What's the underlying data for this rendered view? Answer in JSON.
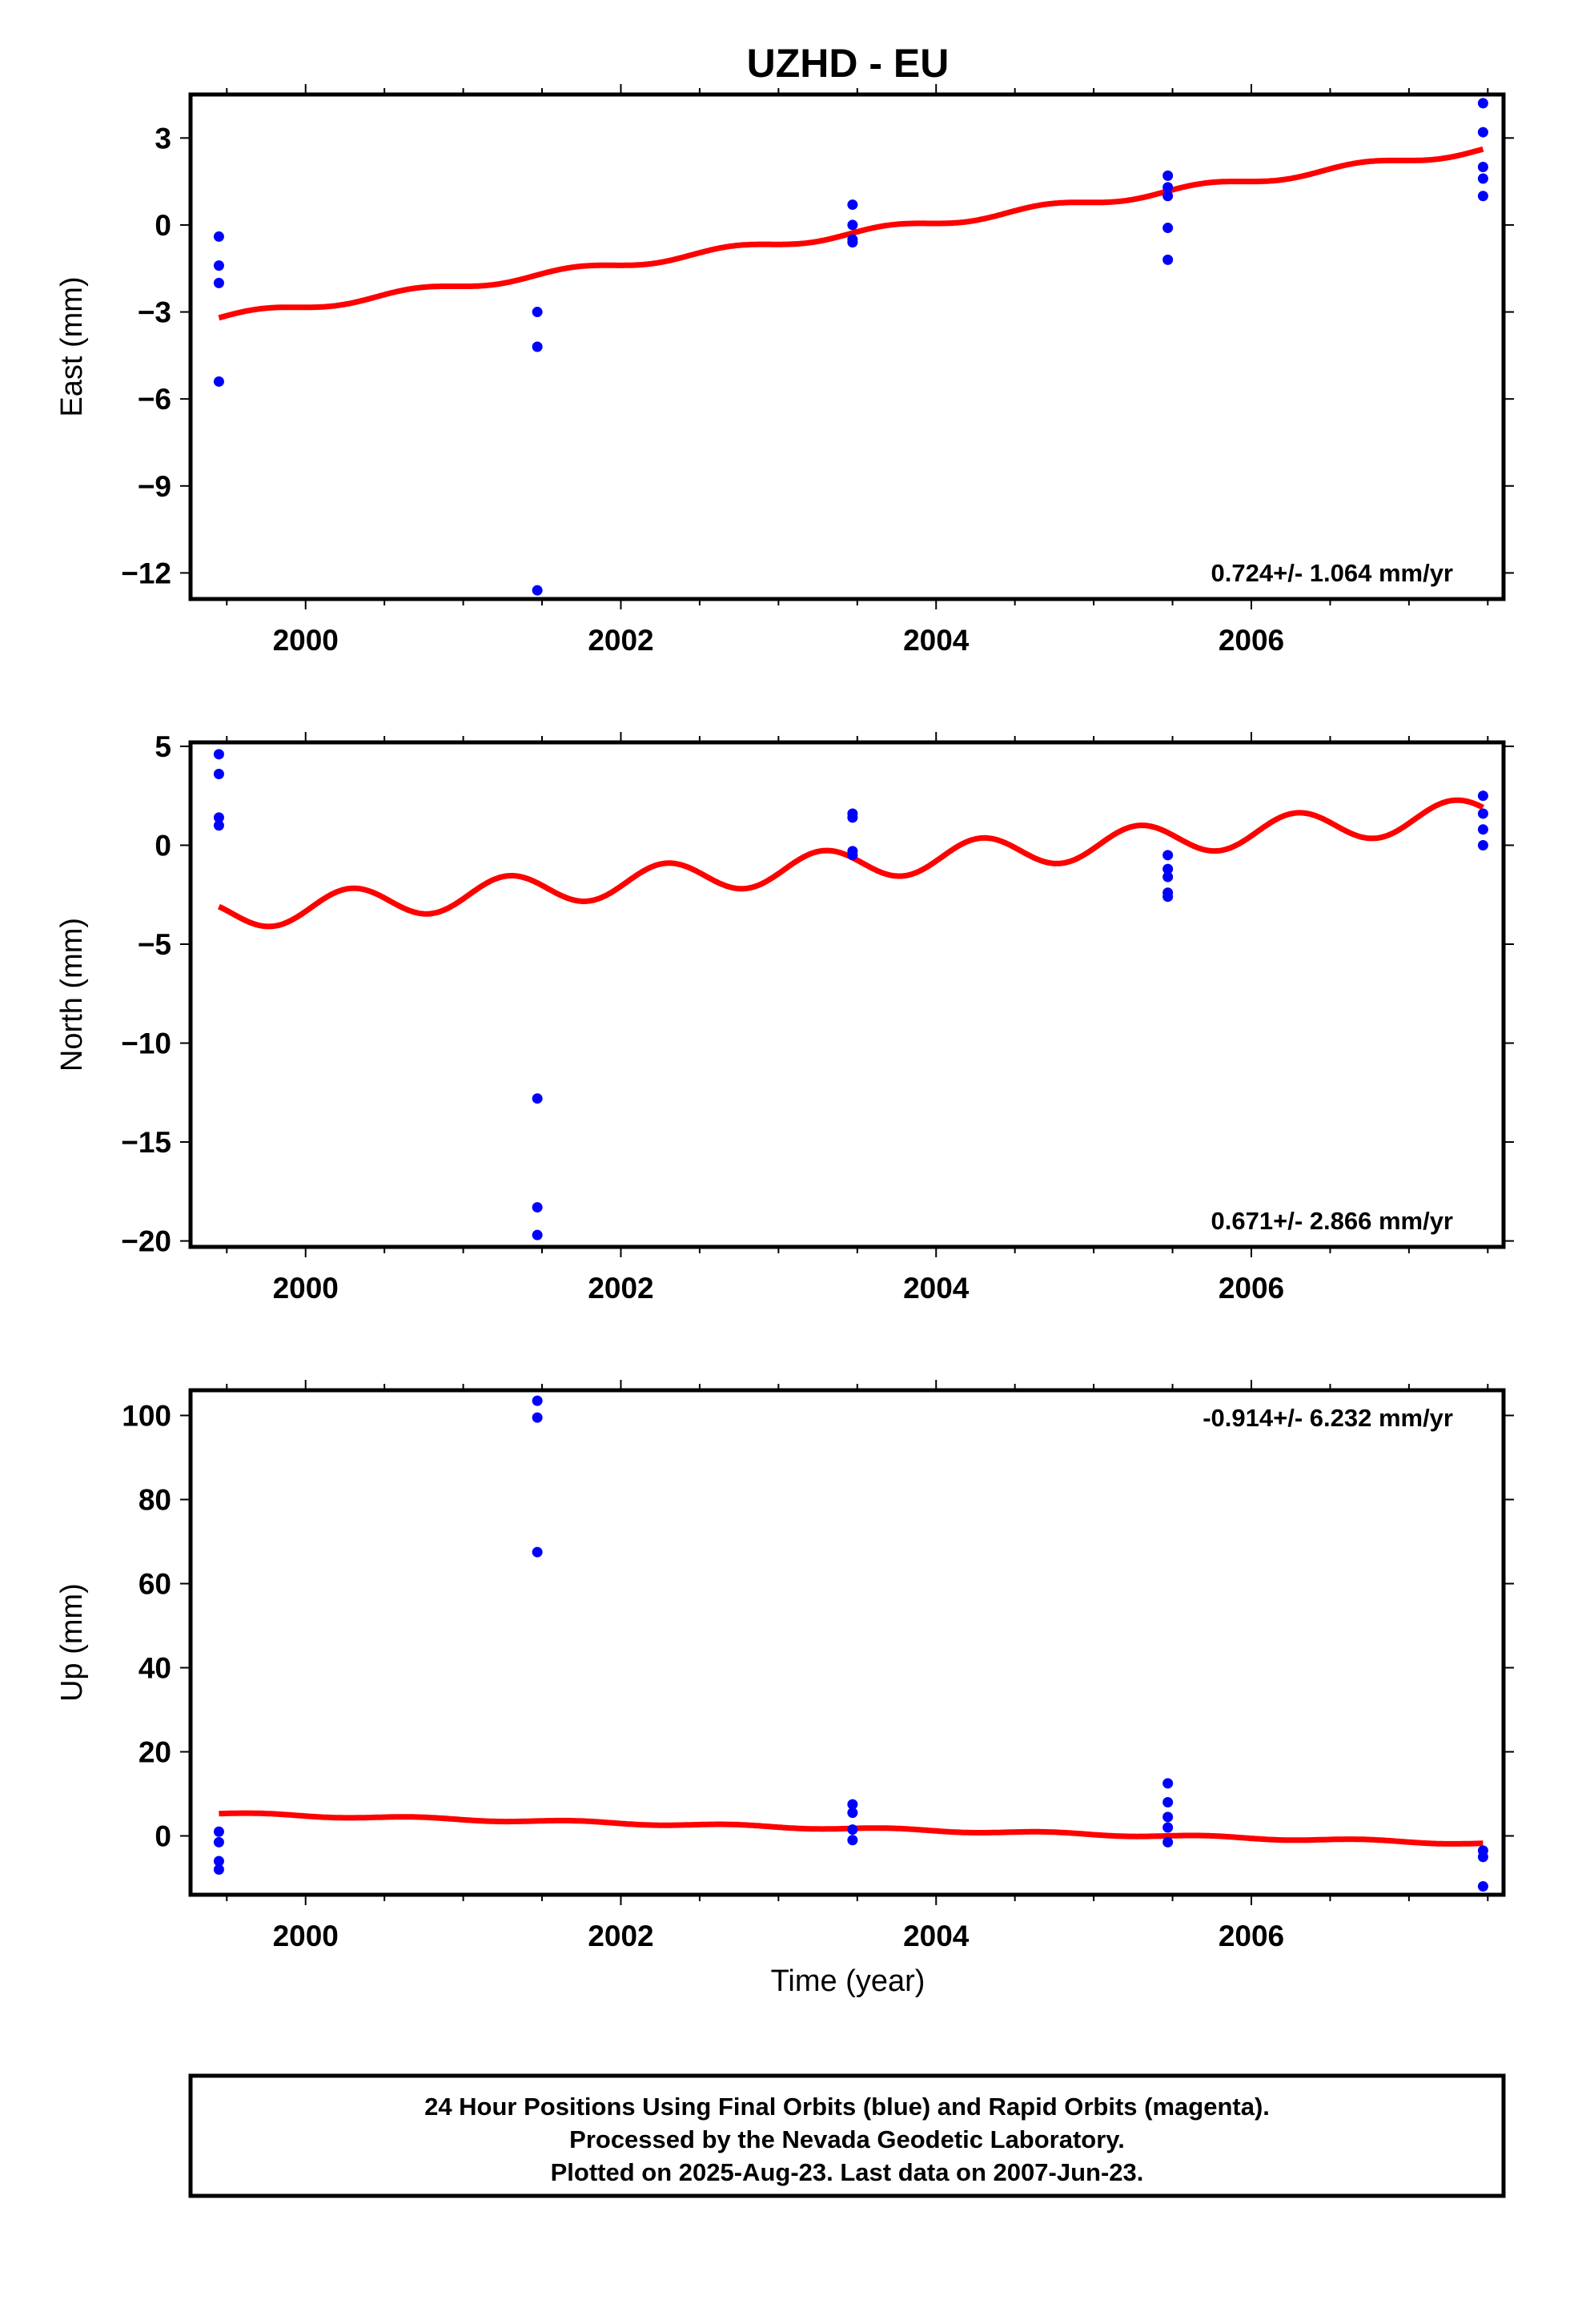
{
  "title": "UZHD - EU",
  "xlabel": "Time (year)",
  "footer": {
    "line1": "24 Hour Positions Using Final Orbits (blue) and Rapid Orbits (magenta).",
    "line2": "Processed by the Nevada Geodetic Laboratory.",
    "line3": "Plotted on 2025-Aug-23. Last data on 2007-Jun-23."
  },
  "colors": {
    "points": "#0000ff",
    "fit": "#ff0000",
    "frame": "#000000"
  },
  "chart_data": [
    {
      "type": "scatter",
      "ylabel": "East (mm)",
      "rate_label": "0.724+/- 1.064 mm/yr",
      "rate_position": "bottom-right",
      "xlim": [
        1999.27,
        2007.6
      ],
      "ylim": [
        -12.9,
        4.5
      ],
      "xticks": [
        2000,
        2002,
        2004,
        2006
      ],
      "xtick_labels": [
        "2000",
        "2002",
        "2004",
        "2006"
      ],
      "yticks": [
        3,
        0,
        -3,
        -6,
        -9,
        -12
      ],
      "ytick_labels": [
        "3",
        "0",
        "−3",
        "−6",
        "−9",
        "−12"
      ],
      "points": [
        [
          1999.45,
          -0.4
        ],
        [
          1999.45,
          -1.4
        ],
        [
          1999.45,
          -2.0
        ],
        [
          1999.45,
          -5.4
        ],
        [
          2001.47,
          -3.0
        ],
        [
          2001.47,
          -4.2
        ],
        [
          2001.47,
          -12.6
        ],
        [
          2003.47,
          0.7
        ],
        [
          2003.47,
          0.0
        ],
        [
          2003.47,
          -0.5
        ],
        [
          2003.47,
          -0.6
        ],
        [
          2005.47,
          1.7
        ],
        [
          2005.47,
          1.3
        ],
        [
          2005.47,
          1.0
        ],
        [
          2005.47,
          -0.1
        ],
        [
          2005.47,
          -1.2
        ],
        [
          2007.47,
          4.2
        ],
        [
          2007.47,
          3.2
        ],
        [
          2007.47,
          2.0
        ],
        [
          2007.47,
          1.6
        ],
        [
          2007.47,
          1.0
        ]
      ],
      "fit": {
        "start": 1999.45,
        "end": 2007.47,
        "value_at_start": -3.2,
        "value_at_end": 2.6,
        "annual_amplitude": 0.12,
        "phase": 0.0
      }
    },
    {
      "type": "scatter",
      "ylabel": "North (mm)",
      "rate_label": "0.671+/- 2.866 mm/yr",
      "rate_position": "bottom-right",
      "xlim": [
        1999.27,
        2007.6
      ],
      "ylim": [
        -20.3,
        5.2
      ],
      "xticks": [
        2000,
        2002,
        2004,
        2006
      ],
      "xtick_labels": [
        "2000",
        "2002",
        "2004",
        "2006"
      ],
      "yticks": [
        5,
        0,
        -5,
        -10,
        -15,
        -20
      ],
      "ytick_labels": [
        "5",
        "0",
        "−5",
        "−10",
        "−15",
        "−20"
      ],
      "points": [
        [
          1999.45,
          4.6
        ],
        [
          1999.45,
          3.6
        ],
        [
          1999.45,
          1.4
        ],
        [
          1999.45,
          1.0
        ],
        [
          2001.47,
          -12.8
        ],
        [
          2001.47,
          -18.3
        ],
        [
          2001.47,
          -19.7
        ],
        [
          2003.47,
          1.6
        ],
        [
          2003.47,
          1.4
        ],
        [
          2003.47,
          -0.3
        ],
        [
          2003.47,
          -0.5
        ],
        [
          2005.47,
          -0.5
        ],
        [
          2005.47,
          -1.2
        ],
        [
          2005.47,
          -1.6
        ],
        [
          2005.47,
          -2.4
        ],
        [
          2005.47,
          -2.6
        ],
        [
          2007.47,
          2.5
        ],
        [
          2007.47,
          1.6
        ],
        [
          2007.47,
          0.8
        ],
        [
          2007.47,
          0.0
        ]
      ],
      "fit": {
        "start": 1999.45,
        "end": 2007.47,
        "value_at_start": -3.1,
        "value_at_end": 2.0,
        "annual_amplitude": 0.8,
        "phase": 2.6
      }
    },
    {
      "type": "scatter",
      "ylabel": "Up (mm)",
      "rate_label": "-0.914+/- 6.232 mm/yr",
      "rate_position": "top-right",
      "xlim": [
        1999.27,
        2007.6
      ],
      "ylim": [
        -14,
        106
      ],
      "xticks": [
        2000,
        2002,
        2004,
        2006
      ],
      "xtick_labels": [
        "2000",
        "2002",
        "2004",
        "2006"
      ],
      "yticks": [
        100,
        80,
        60,
        40,
        20,
        0
      ],
      "ytick_labels": [
        "100",
        "80",
        "60",
        "40",
        "20",
        "0"
      ],
      "points": [
        [
          1999.45,
          1.0
        ],
        [
          1999.45,
          -1.5
        ],
        [
          1999.45,
          -6.0
        ],
        [
          1999.45,
          -8.0
        ],
        [
          2001.47,
          103.5
        ],
        [
          2001.47,
          99.5
        ],
        [
          2001.47,
          67.5
        ],
        [
          2003.47,
          7.5
        ],
        [
          2003.47,
          5.5
        ],
        [
          2003.47,
          1.5
        ],
        [
          2003.47,
          -1.0
        ],
        [
          2005.47,
          12.5
        ],
        [
          2005.47,
          8.0
        ],
        [
          2005.47,
          4.5
        ],
        [
          2005.47,
          2.0
        ],
        [
          2005.47,
          -1.5
        ],
        [
          2007.47,
          -3.5
        ],
        [
          2007.47,
          -5.0
        ],
        [
          2007.47,
          -12.0
        ]
      ],
      "fit": {
        "start": 1999.45,
        "end": 2007.47,
        "value_at_start": 5.3,
        "value_at_end": -1.8,
        "annual_amplitude": 0.3,
        "phase": 0.0
      }
    }
  ]
}
